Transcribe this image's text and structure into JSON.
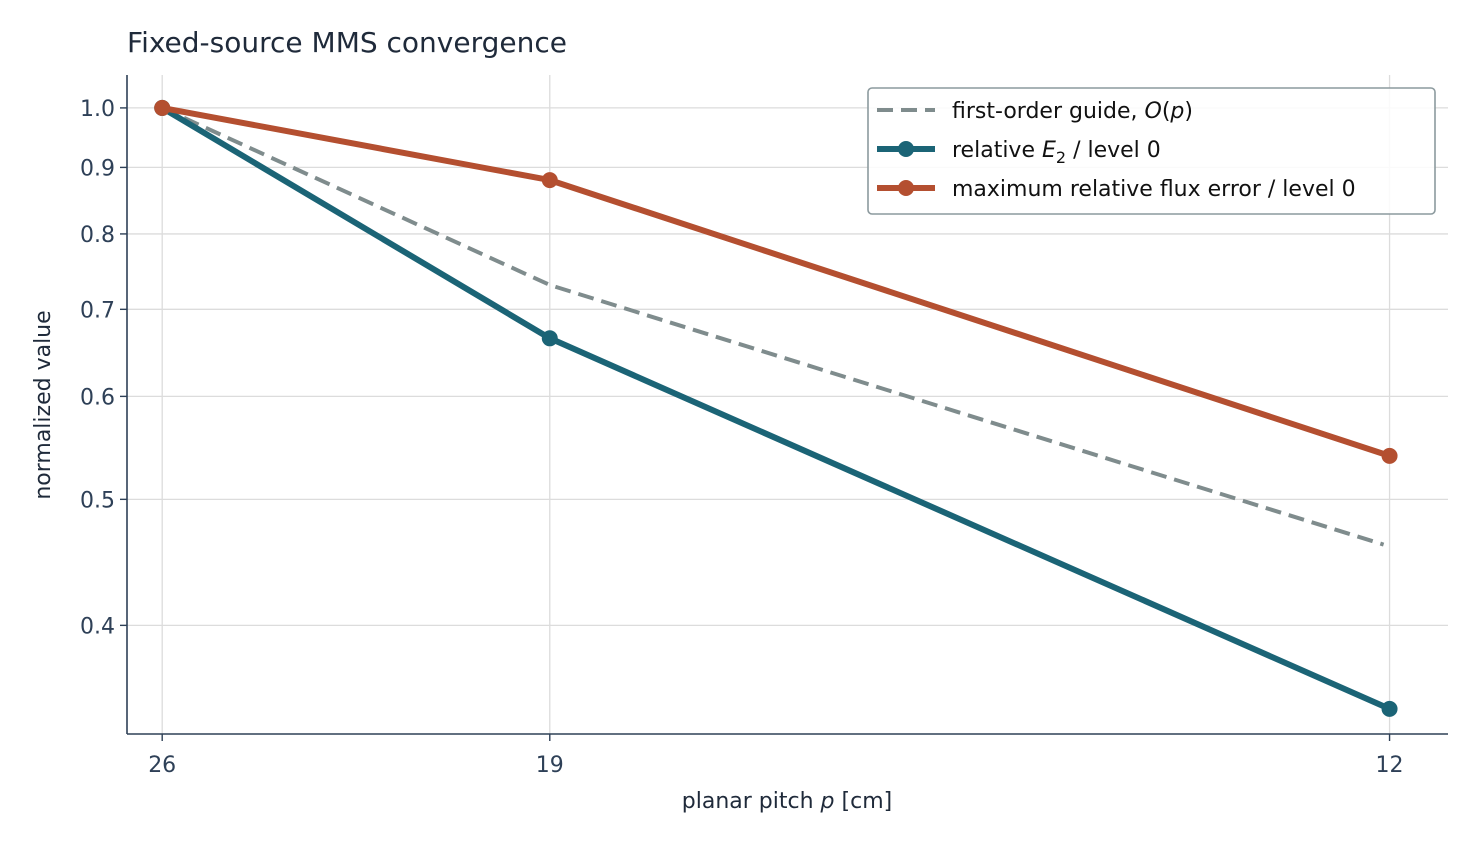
{
  "chart_data": {
    "type": "line",
    "title": "Fixed-source MMS convergence",
    "xlabel": "planar pitch p [cm]",
    "ylabel": "normalized value",
    "x": [
      26,
      19,
      12
    ],
    "x_scale": "reciprocal",
    "xlim": [
      26.9,
      11.7
    ],
    "y_scale": "log",
    "ylim": [
      0.33,
      1.06
    ],
    "yticks": [
      0.4,
      0.5,
      0.6,
      0.7,
      0.8,
      0.9,
      1.0
    ],
    "ytick_labels": [
      "0.4",
      "0.5",
      "0.6",
      "0.7",
      "0.8",
      "0.9",
      "1.0"
    ],
    "xtick_labels": [
      "26",
      "19",
      "12"
    ],
    "grid": true,
    "legend_position": "top-right",
    "series": [
      {
        "name": "first-order guide, O(p)",
        "values": [
          1.0,
          0.7308,
          0.4615
        ],
        "color": "#7f8c8d",
        "style": "dashed",
        "markers": false
      },
      {
        "name": "relative E2 / level 0",
        "values": [
          1.0,
          0.665,
          0.345
        ],
        "color": "#1b6476",
        "style": "solid",
        "markers": true
      },
      {
        "name": "maximum relative flux error / level 0",
        "values": [
          1.0,
          0.88,
          0.54
        ],
        "color": "#b44f30",
        "style": "solid",
        "markers": true
      }
    ]
  }
}
